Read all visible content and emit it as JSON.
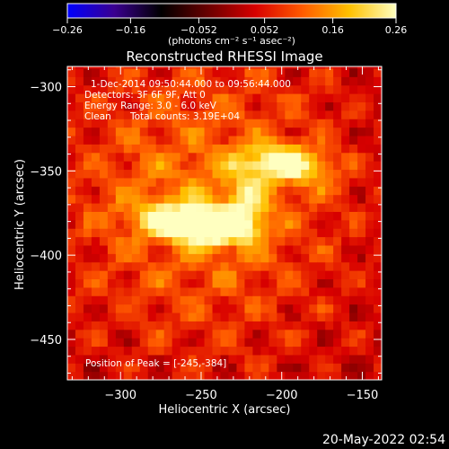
{
  "chart_data": {
    "type": "heatmap",
    "title": "Reconstructed RHESSI Image",
    "xlabel": "Heliocentric X (arcsec)",
    "ylabel": "Heliocentric Y (arcsec)",
    "xlim": [
      -333,
      -138
    ],
    "ylim": [
      -474,
      -288
    ],
    "xticks": [
      -300,
      -250,
      -200,
      -150
    ],
    "xtick_labels": [
      "−300",
      "−250",
      "−200",
      "−150"
    ],
    "yticks": [
      -300,
      -350,
      -400,
      -450
    ],
    "ytick_labels": [
      "−300",
      "−350",
      "−400",
      "−450"
    ],
    "colorbar": {
      "range": [
        -0.26,
        0.26
      ],
      "ticks": [
        -0.26,
        -0.16,
        -0.052,
        0.052,
        0.16,
        0.26
      ],
      "tick_labels": [
        "−0.26",
        "−0.16",
        "−0.052",
        "0.052",
        "0.16",
        "0.26"
      ],
      "unit_label": "(photons cm⁻² s⁻¹ asec⁻²)",
      "colors": [
        "#0000ff",
        "#3a0090",
        "#000000",
        "#6a0000",
        "#d80000",
        "#ff5a00",
        "#ffc000",
        "#ffffc0"
      ]
    },
    "annotations": {
      "time_range": "1-Dec-2014 09:50:44.000 to 09:56:44.000",
      "detectors": "Detectors: 3F 6F 9F, Att 0",
      "energy": "Energy Range: 3.0 - 6.0 keV",
      "clean": "Clean",
      "total_counts": "Total counts: 3.19E+04",
      "peak": "Position of Peak = [-245,-384]"
    },
    "peak_position": [
      -245,
      -384
    ],
    "sources": [
      {
        "x": -245,
        "y": -384,
        "sx": 16,
        "sy": 6,
        "amp": 0.28
      },
      {
        "x": -265,
        "y": -377,
        "sx": 20,
        "sy": 7,
        "amp": 0.15
      },
      {
        "x": -222,
        "y": -370,
        "sx": 10,
        "sy": 14,
        "amp": 0.12
      },
      {
        "x": -202,
        "y": -345,
        "sx": 16,
        "sy": 7,
        "amp": 0.19
      },
      {
        "x": -178,
        "y": -350,
        "sx": 12,
        "sy": 8,
        "amp": 0.07
      },
      {
        "x": -250,
        "y": -365,
        "sx": 60,
        "sy": 60,
        "amp": 0.1
      }
    ],
    "background": 0.03
  },
  "footer": {
    "date": "20-May-2022 02:54"
  }
}
